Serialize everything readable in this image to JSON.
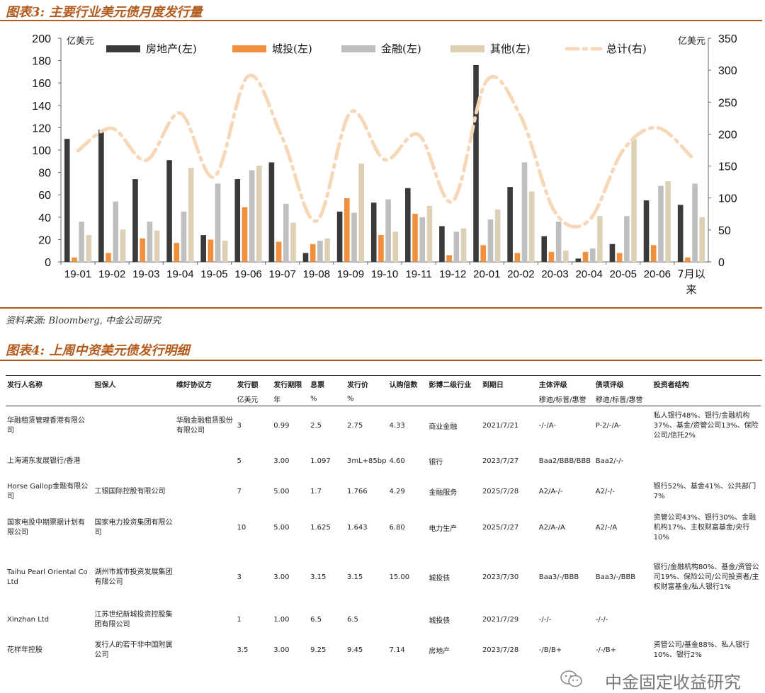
{
  "figure3": {
    "title": "图表3: 主要行业美元债月度发行量",
    "source": "资料来源: Bloomberg, 中金公司研究",
    "chart_data": {
      "type": "bar",
      "title": "主要行业美元债月度发行量",
      "left_unit": "亿美元",
      "right_unit": "亿美元",
      "categories": [
        "19-01",
        "19-02",
        "19-03",
        "19-04",
        "19-05",
        "19-06",
        "19-07",
        "19-08",
        "19-09",
        "19-10",
        "19-11",
        "19-12",
        "20-01",
        "20-02",
        "20-03",
        "20-04",
        "20-05",
        "20-06",
        "7月以来"
      ],
      "last_category_lines": [
        "7月以",
        "来"
      ],
      "ylim_left": [
        0,
        200
      ],
      "ylim_right": [
        0,
        350
      ],
      "yticks_left": [
        "0",
        "20",
        "40",
        "60",
        "80",
        "100",
        "120",
        "140",
        "160",
        "180",
        "200"
      ],
      "yticks_right": [
        "0",
        "50",
        "100",
        "150",
        "200",
        "250",
        "300",
        "350"
      ],
      "series": [
        {
          "name": "房地产(左)",
          "axis": "left",
          "color": "#3a3a3a",
          "values": [
            110,
            118,
            74,
            91,
            24,
            74,
            89,
            8,
            45,
            53,
            66,
            32,
            176,
            67,
            23,
            3,
            16,
            55,
            51
          ]
        },
        {
          "name": "城投(左)",
          "axis": "left",
          "color": "#f0903c",
          "values": [
            4,
            8,
            21,
            17,
            20,
            49,
            18,
            16,
            57,
            24,
            43,
            6,
            15,
            8,
            9,
            9,
            8,
            15,
            4
          ]
        },
        {
          "name": "金融(左)",
          "axis": "left",
          "color": "#bfbfbf",
          "values": [
            36,
            54,
            36,
            45,
            70,
            82,
            52,
            19,
            44,
            56,
            40,
            27,
            38,
            89,
            36,
            12,
            41,
            68,
            70
          ]
        },
        {
          "name": "其他(左)",
          "axis": "left",
          "color": "#ddd0b4",
          "values": [
            24,
            29,
            28,
            84,
            19,
            86,
            35,
            21,
            88,
            27,
            50,
            30,
            47,
            63,
            10,
            41,
            110,
            72,
            40
          ]
        },
        {
          "name": "总计(右)",
          "axis": "right",
          "color": "#f6d8b8",
          "style": "dash-dot",
          "values": [
            174,
            209,
            159,
            233,
            133,
            291,
            194,
            64,
            234,
            160,
            199,
            95,
            284,
            227,
            78,
            65,
            175,
            210,
            165
          ]
        }
      ]
    }
  },
  "figure4": {
    "title": "图表4: 上周中资美元债发行明细",
    "columns": [
      "发行人名称",
      "担保人",
      "维好协议方",
      "发行额",
      "发行期限",
      "息票",
      "发行价",
      "认购倍数",
      "彭博二级行业",
      "到期日",
      "主体评级",
      "债项评级",
      "投资者结构"
    ],
    "units": [
      "",
      "",
      "",
      "亿美元",
      "年",
      "%",
      "%",
      "",
      "",
      "",
      "穆迪/标普/惠誉",
      "穆迪/标普/惠誉",
      ""
    ],
    "rows": [
      {
        "issuer": "华融租赁管理香港有限公司",
        "guarantor": "",
        "keepwell": "华融金融租赁股份有限公司",
        "amount": "3",
        "tenor": "0.99",
        "coupon": "2.5",
        "price": "2.75",
        "cover": "4.33",
        "industry": "商业金融",
        "maturity": "2021/7/21",
        "issuer_rating": "-/-/A-",
        "bond_rating": "P-2/-/A-",
        "investors": "私人银行48%、银行/金融机构37%、基金/资管公司13%、保险公司/信托2%"
      },
      {
        "issuer": "上海浦东发展银行/香港",
        "guarantor": "",
        "keepwell": "",
        "amount": "5",
        "tenor": "3.00",
        "coupon": "1.097",
        "price": "3mL+85bp",
        "cover": "4.60",
        "industry": "银行",
        "maturity": "2023/7/27",
        "issuer_rating": "Baa2/BBB/BBB",
        "bond_rating": "Baa2/-/-",
        "investors": ""
      },
      {
        "issuer": "Horse Gallop金融有限公司",
        "guarantor": "工银国际控股有限公司",
        "keepwell": "",
        "amount": "7",
        "tenor": "5.00",
        "coupon": "1.7",
        "price": "1.766",
        "cover": "4.29",
        "industry": "金融服务",
        "maturity": "2025/7/28",
        "issuer_rating": "A2/A-/-",
        "bond_rating": "A2/-/-",
        "investors": "银行52%、基金41%、公共部门7%"
      },
      {
        "issuer": "国家电投中期票据计划有限公司",
        "guarantor": "国家电力投资集团有限公司",
        "keepwell": "",
        "amount": "10",
        "tenor": "5.00",
        "coupon": "1.625",
        "price": "1.643",
        "cover": "6.80",
        "industry": "电力生产",
        "maturity": "2025/7/27",
        "issuer_rating": "A2/A-/A",
        "bond_rating": "A2/-/A",
        "investors": "资管公司43%、银行30%、金融机构17%、主权财富基金/央行10%"
      },
      {
        "issuer": "Taihu Pearl Oriental Co Ltd",
        "guarantor": "湖州市城市投资发展集团有限公司",
        "keepwell": "",
        "amount": "3",
        "tenor": "3.00",
        "coupon": "3.15",
        "price": "3.15",
        "cover": "15.00",
        "industry": "城投债",
        "maturity": "2023/7/30",
        "issuer_rating": "Baa3/-/BBB",
        "bond_rating": "Baa3/-/BBB",
        "investors": "银行/金融机构80%、基金/资管公司19%、保险公司/公司投资者/主权财富基金/私人银行1%"
      },
      {
        "issuer": "Xinzhan Ltd",
        "guarantor": "江苏世纪新城投资控股集团有限公司",
        "keepwell": "",
        "amount": "1",
        "tenor": "1.00",
        "coupon": "6.5",
        "price": "6.5",
        "cover": "",
        "industry": "城投债",
        "maturity": "2021/7/29",
        "issuer_rating": "-/-/-",
        "bond_rating": "-/-/-",
        "investors": ""
      },
      {
        "issuer": "花样年控股",
        "guarantor": "发行人的若干非中国附属公司",
        "keepwell": "",
        "amount": "3.5",
        "tenor": "3.00",
        "coupon": "9.25",
        "price": "9.45",
        "cover": "7.14",
        "industry": "房地产",
        "maturity": "2023/7/28",
        "issuer_rating": "-/B/B+",
        "bond_rating": "-/-/B+",
        "investors": "资管公司/基金88%、私人银行10%、银行2%"
      }
    ]
  },
  "watermark": "中金固定收益研究",
  "icons": {
    "watermark": "wechat-icon"
  }
}
